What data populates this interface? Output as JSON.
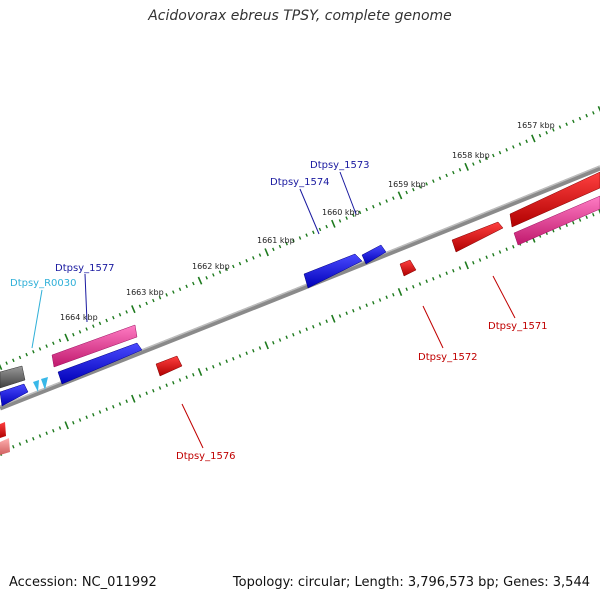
{
  "title": "Acidovorax ebreus TPSY, complete genome",
  "footer": {
    "accession": "Accession: NC_011992",
    "summary": "Topology: circular; Length: 3,796,573 bp; Genes: 3,544"
  },
  "colors": {
    "backbone": "#8a8a8a",
    "ruler": "#1e7a1e",
    "forward_gene": "#e8288a",
    "reverse_gene": "#1010e0",
    "red_gene": "#e00000",
    "dark_gene": "#606060",
    "rna": "#38b8e8",
    "label_blue": "#1a1aa0",
    "label_red": "#c00000",
    "label_cyan": "#30b0d8"
  },
  "ruler_labels": [
    "1657 kbp",
    "1658 kbp",
    "1659 kbp",
    "1660 kbp",
    "1661 kbp",
    "1662 kbp",
    "1663 kbp",
    "1664 kbp"
  ],
  "gene_labels": {
    "top": [
      "Dtpsy_1573",
      "Dtpsy_1574",
      "Dtpsy_1577",
      "Dtpsy_R0030"
    ],
    "bottom": [
      "Dtpsy_1571",
      "Dtpsy_1572",
      "Dtpsy_1576"
    ]
  }
}
